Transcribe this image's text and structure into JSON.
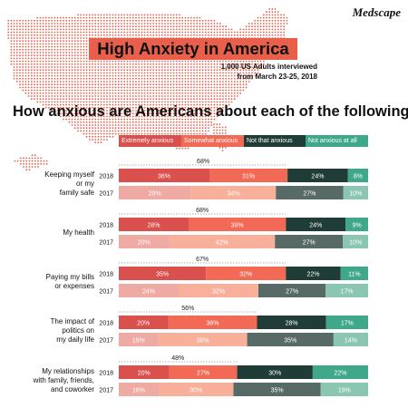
{
  "header": {
    "brand": "Medscape",
    "title": "High Anxiety in America",
    "subtitle_line1": "1,000 US Adults interviewed",
    "subtitle_line2": "from March 23-25, 2018",
    "question": "How anxious are Americans about each of the following?"
  },
  "colors": {
    "extremely_2018": "#d9504c",
    "extremely_2017": "#f0aaa4",
    "somewhat_2018": "#f26a56",
    "somewhat_2017": "#f9b09b",
    "not_that_2018": "#1f3d36",
    "not_that_2017": "#586a65",
    "not_at_all_2018": "#3fa88a",
    "not_at_all_2017": "#8ac6b2",
    "map": "#e8604c"
  },
  "chart_data": {
    "type": "bar",
    "orientation": "horizontal-stacked-100",
    "legend": [
      "Extremely anxious",
      "Somewhat anxious",
      "Not that anxious",
      "Not anxious at all"
    ],
    "items": [
      {
        "label_lines": [
          "Keeping myself",
          "or my",
          "family safe"
        ],
        "total_anxious_2018": "68%",
        "rows": [
          {
            "year": "2018",
            "values": [
              36,
              31,
              24,
              8
            ]
          },
          {
            "year": "2017",
            "values": [
              29,
              34,
              27,
              10
            ]
          }
        ]
      },
      {
        "label_lines": [
          "My health"
        ],
        "total_anxious_2018": "68%",
        "rows": [
          {
            "year": "2018",
            "values": [
              28,
              39,
              24,
              9
            ]
          },
          {
            "year": "2017",
            "values": [
              20,
              42,
              27,
              10
            ]
          }
        ]
      },
      {
        "label_lines": [
          "Paying my bills",
          "or expenses"
        ],
        "total_anxious_2018": "67%",
        "rows": [
          {
            "year": "2018",
            "values": [
              35,
              32,
              22,
              11
            ]
          },
          {
            "year": "2017",
            "values": [
              24,
              32,
              27,
              17
            ]
          }
        ]
      },
      {
        "label_lines": [
          "The impact of",
          "politics on",
          "my daily life"
        ],
        "total_anxious_2018": "56%",
        "rows": [
          {
            "year": "2018",
            "values": [
              20,
              36,
              28,
              17
            ]
          },
          {
            "year": "2017",
            "values": [
              16,
              36,
              35,
              14
            ]
          }
        ]
      },
      {
        "label_lines": [
          "My relationships",
          "with family, friends,",
          "and coworker"
        ],
        "total_anxious_2018": "48%",
        "rows": [
          {
            "year": "2018",
            "values": [
              20,
              27,
              30,
              22
            ]
          },
          {
            "year": "2017",
            "values": [
              16,
              30,
              35,
              19
            ]
          }
        ]
      }
    ]
  }
}
